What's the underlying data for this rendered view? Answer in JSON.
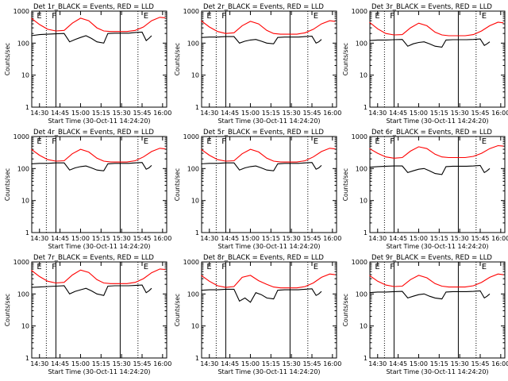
{
  "colors": {
    "background": "#ffffff",
    "events": "#000000",
    "lld": "#ff0000",
    "axes": "#000000"
  },
  "shared": {
    "x_tick_labels": [
      "14:30",
      "14:45",
      "15:00",
      "15:15",
      "15:30",
      "15:45",
      "16:00"
    ],
    "xlabel": "Start Time (30-Oct-11 14:24:20)",
    "ylabel": "Counts/sec",
    "y_tick_labels": [
      "1",
      "10",
      "100",
      "1000"
    ],
    "solid_markers": [
      "14:42",
      "15:29"
    ],
    "dotted_markers": [
      "14:35",
      "15:42"
    ],
    "marker_letters": [
      {
        "x": "14:28",
        "label": "E"
      },
      {
        "x": "14:39",
        "label": "F"
      },
      {
        "x": "15:46",
        "label": "E"
      }
    ]
  },
  "chart_data": [
    {
      "type": "line",
      "title": "Det 1r_BLACK = Events, RED = LLD",
      "xlabel": "Start Time (30-Oct-11 14:24:20)",
      "ylabel": "Counts/sec",
      "x_range": [
        "14:24:20",
        "16:03"
      ],
      "ylim": [
        1,
        1000
      ],
      "y_scale": "log",
      "series": [
        {
          "name": "Events",
          "color": "#000000",
          "x": [
            "14:24",
            "14:30",
            "14:36",
            "14:42",
            "14:48",
            "14:52",
            "14:56",
            "15:00",
            "15:04",
            "15:08",
            "15:12",
            "15:17",
            "15:20",
            "15:25",
            "15:30",
            "15:35",
            "15:40",
            "15:45",
            "15:48",
            "15:50",
            "15:52"
          ],
          "y": [
            170,
            185,
            190,
            195,
            200,
            110,
            130,
            150,
            170,
            140,
            110,
            100,
            200,
            205,
            205,
            205,
            215,
            220,
            120,
            140,
            170
          ]
        },
        {
          "name": "LLD",
          "color": "#ff0000",
          "x": [
            "14:24",
            "14:30",
            "14:36",
            "14:42",
            "14:48",
            "14:54",
            "15:00",
            "15:06",
            "15:12",
            "15:17",
            "15:22",
            "15:28",
            "15:34",
            "15:40",
            "15:46",
            "15:52",
            "15:58",
            "16:02"
          ],
          "y": [
            600,
            380,
            270,
            240,
            250,
            420,
            600,
            500,
            300,
            240,
            230,
            230,
            230,
            250,
            320,
            500,
            640,
            620
          ]
        }
      ]
    },
    {
      "type": "line",
      "title": "Det 2r_BLACK = Events, RED = LLD",
      "xlabel": "Start Time (30-Oct-11 14:24:20)",
      "ylabel": "Counts/sec",
      "x_range": [
        "14:24:20",
        "16:03"
      ],
      "ylim": [
        1,
        1000
      ],
      "y_scale": "log",
      "series": [
        {
          "name": "Events",
          "color": "#000000",
          "x": [
            "14:24",
            "14:30",
            "14:36",
            "14:42",
            "14:48",
            "14:52",
            "14:56",
            "15:00",
            "15:04",
            "15:08",
            "15:12",
            "15:17",
            "15:20",
            "15:25",
            "15:30",
            "15:35",
            "15:40",
            "15:45",
            "15:48",
            "15:50",
            "15:52"
          ],
          "y": [
            150,
            155,
            155,
            160,
            160,
            100,
            115,
            125,
            130,
            115,
            100,
            95,
            150,
            155,
            155,
            155,
            160,
            165,
            100,
            110,
            130
          ]
        },
        {
          "name": "LLD",
          "color": "#ff0000",
          "x": [
            "14:24",
            "14:30",
            "14:36",
            "14:42",
            "14:48",
            "14:54",
            "15:00",
            "15:06",
            "15:12",
            "15:17",
            "15:22",
            "15:28",
            "15:34",
            "15:40",
            "15:46",
            "15:52",
            "15:58",
            "16:02"
          ],
          "y": [
            500,
            320,
            230,
            200,
            210,
            350,
            480,
            400,
            250,
            200,
            190,
            190,
            190,
            210,
            270,
            400,
            500,
            480
          ]
        }
      ]
    },
    {
      "type": "line",
      "title": "Det 3r_BLACK = Events, RED = LLD",
      "xlabel": "Start Time (30-Oct-11 14:24:20)",
      "ylabel": "Counts/sec",
      "x_range": [
        "14:24:20",
        "16:03"
      ],
      "ylim": [
        1,
        1000
      ],
      "y_scale": "log",
      "series": [
        {
          "name": "Events",
          "color": "#000000",
          "x": [
            "14:24",
            "14:30",
            "14:36",
            "14:42",
            "14:48",
            "14:52",
            "14:56",
            "15:00",
            "15:04",
            "15:08",
            "15:12",
            "15:17",
            "15:20",
            "15:25",
            "15:30",
            "15:35",
            "15:40",
            "15:45",
            "15:48",
            "15:50",
            "15:52"
          ],
          "y": [
            120,
            125,
            125,
            128,
            130,
            80,
            95,
            105,
            110,
            95,
            80,
            75,
            125,
            128,
            128,
            128,
            130,
            135,
            85,
            95,
            110
          ]
        },
        {
          "name": "LLD",
          "color": "#ff0000",
          "x": [
            "14:24",
            "14:30",
            "14:36",
            "14:42",
            "14:48",
            "14:54",
            "15:00",
            "15:06",
            "15:12",
            "15:17",
            "15:22",
            "15:28",
            "15:34",
            "15:40",
            "15:46",
            "15:52",
            "15:58",
            "16:02"
          ],
          "y": [
            450,
            280,
            200,
            180,
            185,
            300,
            420,
            350,
            220,
            180,
            170,
            170,
            170,
            185,
            240,
            350,
            450,
            430
          ]
        }
      ]
    },
    {
      "type": "line",
      "title": "Det 4r_BLACK = Events, RED = LLD",
      "xlabel": "Start Time (30-Oct-11 14:24:20)",
      "ylabel": "Counts/sec",
      "x_range": [
        "14:24:20",
        "16:03"
      ],
      "ylim": [
        1,
        1000
      ],
      "y_scale": "log",
      "series": [
        {
          "name": "Events",
          "color": "#000000",
          "x": [
            "14:24",
            "14:30",
            "14:36",
            "14:42",
            "14:48",
            "14:52",
            "14:56",
            "15:00",
            "15:04",
            "15:08",
            "15:12",
            "15:17",
            "15:20",
            "15:25",
            "15:30",
            "15:35",
            "15:40",
            "15:45",
            "15:48",
            "15:50",
            "15:52"
          ],
          "y": [
            140,
            145,
            145,
            150,
            150,
            90,
            105,
            115,
            120,
            105,
            90,
            85,
            140,
            145,
            145,
            145,
            150,
            155,
            95,
            105,
            125
          ]
        },
        {
          "name": "LLD",
          "color": "#ff0000",
          "x": [
            "14:24",
            "14:30",
            "14:36",
            "14:42",
            "14:48",
            "14:54",
            "15:00",
            "15:06",
            "15:12",
            "15:17",
            "15:22",
            "15:28",
            "15:34",
            "15:40",
            "15:46",
            "15:52",
            "15:58",
            "16:02"
          ],
          "y": [
            400,
            260,
            190,
            170,
            175,
            290,
            400,
            330,
            210,
            170,
            160,
            160,
            160,
            175,
            230,
            340,
            430,
            410
          ]
        }
      ]
    },
    {
      "type": "line",
      "title": "Det 5r_BLACK = Events, RED = LLD",
      "xlabel": "Start Time (30-Oct-11 14:24:20)",
      "ylabel": "Counts/sec",
      "x_range": [
        "14:24:20",
        "16:03"
      ],
      "ylim": [
        1,
        1000
      ],
      "y_scale": "log",
      "series": [
        {
          "name": "Events",
          "color": "#000000",
          "x": [
            "14:24",
            "14:30",
            "14:36",
            "14:42",
            "14:48",
            "14:52",
            "14:56",
            "15:00",
            "15:04",
            "15:08",
            "15:12",
            "15:17",
            "15:20",
            "15:25",
            "15:30",
            "15:35",
            "15:40",
            "15:45",
            "15:48",
            "15:50",
            "15:52"
          ],
          "y": [
            140,
            145,
            145,
            150,
            150,
            90,
            105,
            115,
            120,
            105,
            90,
            85,
            140,
            145,
            145,
            145,
            150,
            155,
            95,
            105,
            125
          ]
        },
        {
          "name": "LLD",
          "color": "#ff0000",
          "x": [
            "14:24",
            "14:30",
            "14:36",
            "14:42",
            "14:48",
            "14:54",
            "15:00",
            "15:06",
            "15:12",
            "15:17",
            "15:22",
            "15:28",
            "15:34",
            "15:40",
            "15:46",
            "15:52",
            "15:58",
            "16:02"
          ],
          "y": [
            400,
            260,
            190,
            170,
            175,
            290,
            400,
            330,
            210,
            170,
            160,
            160,
            160,
            175,
            230,
            340,
            430,
            410
          ]
        }
      ]
    },
    {
      "type": "line",
      "title": "Det 6r_BLACK = Events, RED = LLD",
      "xlabel": "Start Time (30-Oct-11 14:24:20)",
      "ylabel": "Counts/sec",
      "x_range": [
        "14:24:20",
        "16:03"
      ],
      "ylim": [
        1,
        1000
      ],
      "y_scale": "log",
      "series": [
        {
          "name": "Events",
          "color": "#000000",
          "x": [
            "14:24",
            "14:30",
            "14:36",
            "14:42",
            "14:48",
            "14:52",
            "14:56",
            "15:00",
            "15:04",
            "15:08",
            "15:12",
            "15:17",
            "15:20",
            "15:25",
            "15:30",
            "15:35",
            "15:40",
            "15:45",
            "15:48",
            "15:50",
            "15:52"
          ],
          "y": [
            110,
            115,
            118,
            120,
            120,
            75,
            85,
            95,
            100,
            85,
            70,
            65,
            115,
            118,
            118,
            118,
            120,
            125,
            75,
            85,
            100
          ]
        },
        {
          "name": "LLD",
          "color": "#ff0000",
          "x": [
            "14:24",
            "14:30",
            "14:36",
            "14:42",
            "14:48",
            "14:54",
            "15:00",
            "15:06",
            "15:12",
            "15:17",
            "15:22",
            "15:28",
            "15:34",
            "15:40",
            "15:46",
            "15:52",
            "15:58",
            "16:02"
          ],
          "y": [
            420,
            300,
            230,
            210,
            220,
            350,
            480,
            420,
            280,
            230,
            220,
            220,
            220,
            240,
            300,
            420,
            520,
            500
          ]
        }
      ]
    },
    {
      "type": "line",
      "title": "Det 7r_BLACK = Events, RED = LLD",
      "xlabel": "Start Time (30-Oct-11 14:24:20)",
      "ylabel": "Counts/sec",
      "x_range": [
        "14:24:20",
        "16:03"
      ],
      "ylim": [
        1,
        1000
      ],
      "y_scale": "log",
      "series": [
        {
          "name": "Events",
          "color": "#000000",
          "x": [
            "14:24",
            "14:30",
            "14:36",
            "14:42",
            "14:48",
            "14:52",
            "14:56",
            "15:00",
            "15:04",
            "15:08",
            "15:12",
            "15:17",
            "15:20",
            "15:25",
            "15:30",
            "15:35",
            "15:40",
            "15:45",
            "15:48",
            "15:50",
            "15:52"
          ],
          "y": [
            160,
            165,
            170,
            175,
            180,
            100,
            120,
            135,
            150,
            125,
            100,
            90,
            175,
            180,
            180,
            180,
            185,
            190,
            110,
            125,
            150
          ]
        },
        {
          "name": "LLD",
          "color": "#ff0000",
          "x": [
            "14:24",
            "14:30",
            "14:36",
            "14:42",
            "14:48",
            "14:54",
            "15:00",
            "15:06",
            "15:12",
            "15:17",
            "15:22",
            "15:28",
            "15:34",
            "15:40",
            "15:46",
            "15:52",
            "15:58",
            "16:02"
          ],
          "y": [
            550,
            350,
            250,
            220,
            230,
            390,
            560,
            470,
            280,
            220,
            210,
            210,
            210,
            230,
            300,
            460,
            600,
            580
          ]
        }
      ]
    },
    {
      "type": "line",
      "title": "Det 8r_BLACK = Events, RED = LLD",
      "xlabel": "Start Time (30-Oct-11 14:24:20)",
      "ylabel": "Counts/sec",
      "x_range": [
        "14:24:20",
        "16:03"
      ],
      "ylim": [
        1,
        1000
      ],
      "y_scale": "log",
      "series": [
        {
          "name": "Events",
          "color": "#000000",
          "x": [
            "14:24",
            "14:30",
            "14:36",
            "14:42",
            "14:48",
            "14:52",
            "14:56",
            "15:00",
            "15:04",
            "15:08",
            "15:12",
            "15:17",
            "15:20",
            "15:25",
            "15:30",
            "15:35",
            "15:40",
            "15:45",
            "15:48",
            "15:50",
            "15:52"
          ],
          "y": [
            130,
            135,
            135,
            140,
            140,
            60,
            75,
            55,
            110,
            95,
            75,
            70,
            130,
            135,
            135,
            135,
            140,
            145,
            90,
            100,
            120
          ]
        },
        {
          "name": "LLD",
          "color": "#ff0000",
          "x": [
            "14:24",
            "14:30",
            "14:36",
            "14:42",
            "14:48",
            "14:54",
            "15:00",
            "15:06",
            "15:12",
            "15:17",
            "15:22",
            "15:28",
            "15:34",
            "15:40",
            "15:46",
            "15:52",
            "15:58",
            "16:02"
          ],
          "y": [
            380,
            250,
            180,
            160,
            170,
            330,
            380,
            260,
            200,
            165,
            155,
            155,
            155,
            170,
            220,
            330,
            420,
            400
          ]
        }
      ]
    },
    {
      "type": "line",
      "title": "Det 9r_BLACK = Events, RED = LLD",
      "xlabel": "Start Time (30-Oct-11 14:24:20)",
      "ylabel": "Counts/sec",
      "x_range": [
        "14:24:20",
        "16:03"
      ],
      "ylim": [
        1,
        1000
      ],
      "y_scale": "log",
      "series": [
        {
          "name": "Events",
          "color": "#000000",
          "x": [
            "14:24",
            "14:30",
            "14:36",
            "14:42",
            "14:48",
            "14:52",
            "14:56",
            "15:00",
            "15:04",
            "15:08",
            "15:12",
            "15:17",
            "15:20",
            "15:25",
            "15:30",
            "15:35",
            "15:40",
            "15:45",
            "15:48",
            "15:50",
            "15:52"
          ],
          "y": [
            110,
            115,
            115,
            118,
            120,
            75,
            85,
            95,
            100,
            85,
            75,
            70,
            115,
            118,
            118,
            118,
            120,
            125,
            75,
            85,
            100
          ]
        },
        {
          "name": "LLD",
          "color": "#ff0000",
          "x": [
            "14:24",
            "14:30",
            "14:36",
            "14:42",
            "14:48",
            "14:54",
            "15:00",
            "15:06",
            "15:12",
            "15:17",
            "15:22",
            "15:28",
            "15:34",
            "15:40",
            "15:46",
            "15:52",
            "15:58",
            "16:02"
          ],
          "y": [
            380,
            250,
            190,
            170,
            175,
            280,
            380,
            320,
            210,
            175,
            165,
            165,
            165,
            180,
            230,
            330,
            420,
            400
          ]
        }
      ]
    }
  ]
}
